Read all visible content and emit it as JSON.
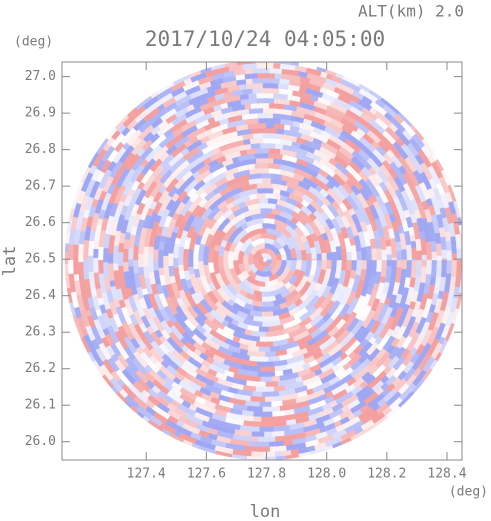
{
  "chart_data": {
    "type": "radar-ppi",
    "title": "2017/10/24 04:05:00",
    "subtitle": "ALT(km) 2.0",
    "y_unit": "(deg)",
    "x_unit": "(deg)",
    "xlabel": "lon",
    "ylabel": "lat",
    "xlim": [
      127.12,
      128.45
    ],
    "ylim": [
      25.95,
      27.04
    ],
    "xticks": [
      127.4,
      127.6,
      127.8,
      {
        "value": 128,
        "label": "128.0"
      },
      128.2,
      128.4
    ],
    "yticks": [
      {
        "value": 26,
        "label": "26.0"
      },
      26.1,
      26.2,
      26.3,
      26.4,
      26.5,
      26.6,
      26.7,
      26.8,
      26.9,
      {
        "value": 27,
        "label": "27.0"
      }
    ],
    "colors": [
      "#f4a0a0",
      "#ffffff",
      "#a0a8f4"
    ]
  }
}
